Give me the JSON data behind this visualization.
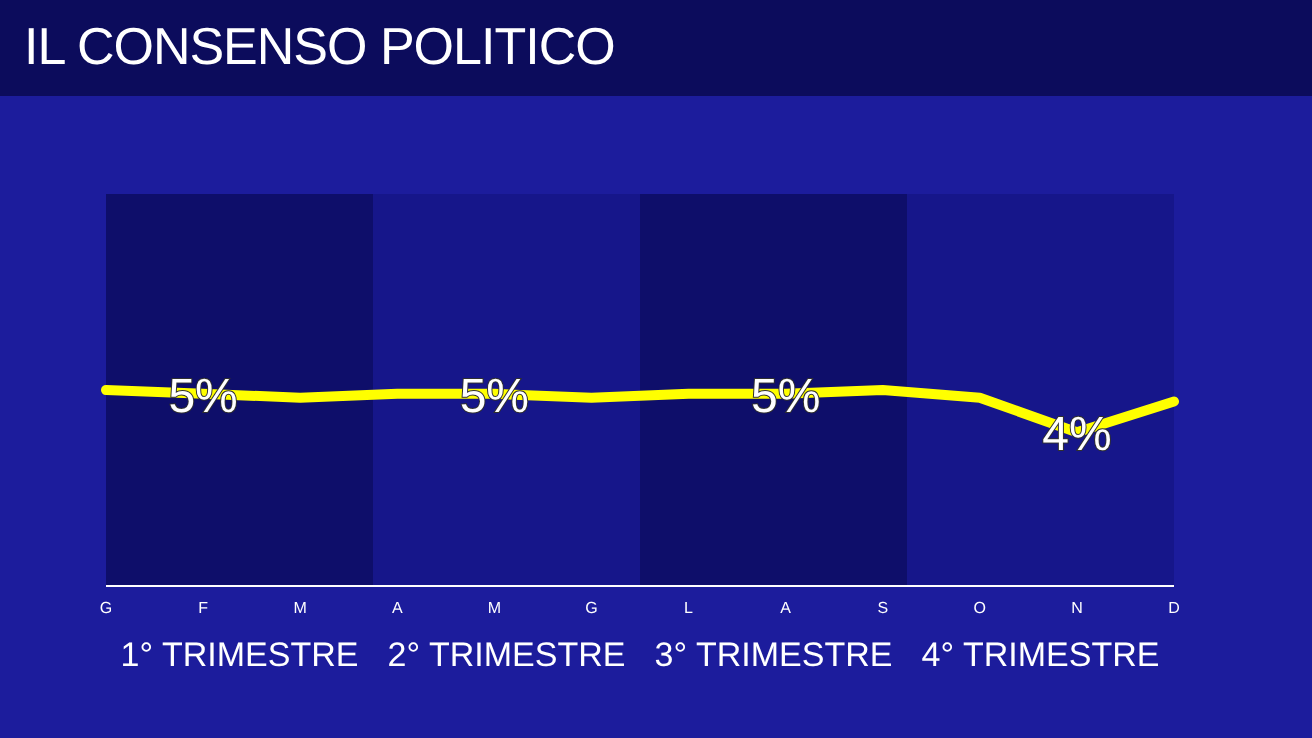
{
  "chart_data": {
    "type": "line",
    "title": "IL CONSENSO POLITICO",
    "categories": [
      "G",
      "F",
      "M",
      "A",
      "M",
      "G",
      "L",
      "A",
      "S",
      "O",
      "N",
      "D"
    ],
    "series": [
      {
        "color": "#ffff00",
        "values": [
          5.1,
          5,
          4.9,
          5,
          5,
          4.9,
          5,
          5,
          5.1,
          4.9,
          4,
          4.8
        ],
        "value_labels": [
          null,
          "5%",
          null,
          null,
          "5%",
          null,
          null,
          "5%",
          null,
          null,
          "4%",
          null
        ]
      }
    ],
    "annotations": [
      "1° TRIMESTRE",
      "2° TRIMESTRE",
      "3° TRIMESTRE",
      "4° TRIMESTRE"
    ],
    "marker": "none"
  }
}
